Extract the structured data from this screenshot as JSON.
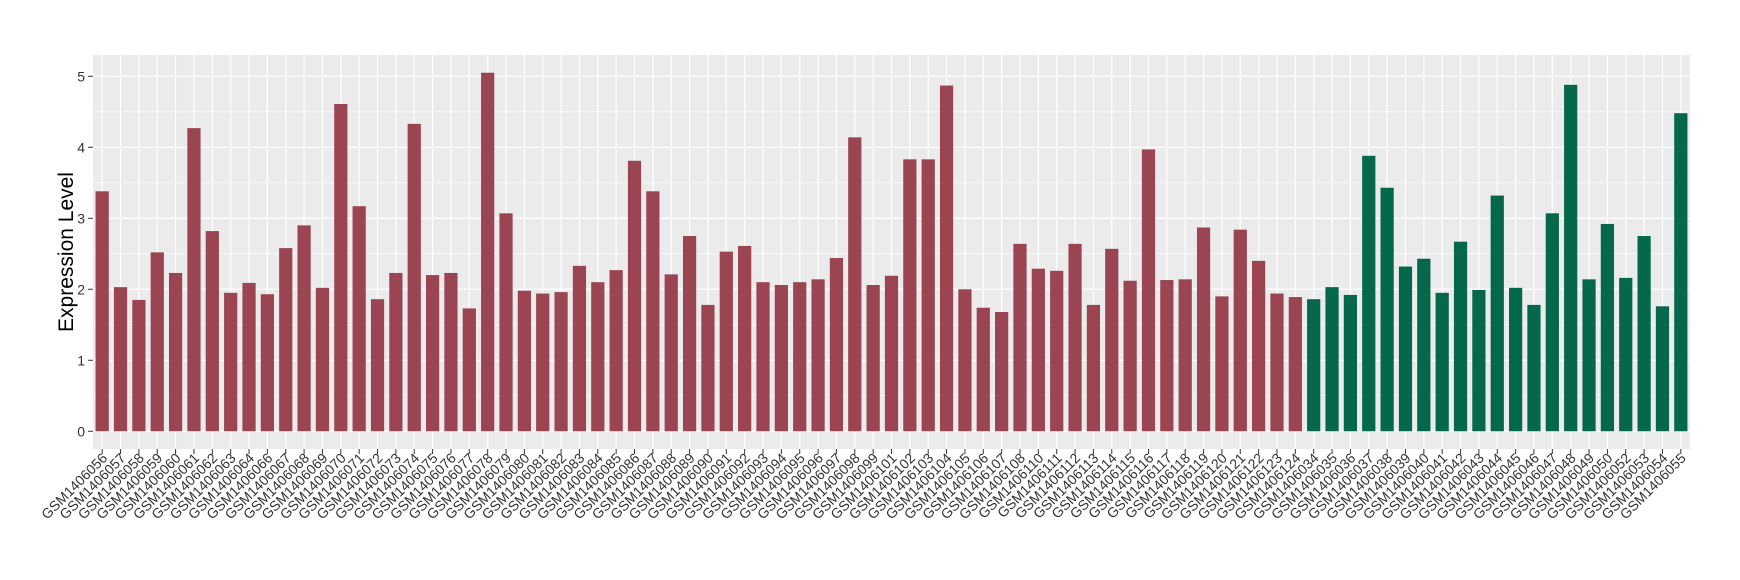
{
  "chart_data": {
    "type": "bar",
    "title": "",
    "xlabel": "",
    "ylabel": "Expression Level",
    "ylim": [
      -0.25,
      5.3
    ],
    "yticks": [
      0,
      1,
      2,
      3,
      4,
      5
    ],
    "grid": true,
    "legend": "none",
    "colors": {
      "group_a": "#9B4452",
      "group_b": "#05684A",
      "panel_bg": "#EBEBEB",
      "grid": "#FFFFFF"
    },
    "series": [
      {
        "group": "group_a",
        "categories": [
          "GSM1406056",
          "GSM1406057",
          "GSM1406058",
          "GSM1406059",
          "GSM1406060",
          "GSM1406061",
          "GSM1406062",
          "GSM1406063",
          "GSM1406064",
          "GSM1406066",
          "GSM1406067",
          "GSM1406068",
          "GSM1406069",
          "GSM1406070",
          "GSM1406071",
          "GSM1406072",
          "GSM1406073",
          "GSM1406074",
          "GSM1406075",
          "GSM1406076",
          "GSM1406077",
          "GSM1406078",
          "GSM1406079",
          "GSM1406080",
          "GSM1406081",
          "GSM1406082",
          "GSM1406083",
          "GSM1406084",
          "GSM1406085",
          "GSM1406086",
          "GSM1406087",
          "GSM1406088",
          "GSM1406089",
          "GSM1406090",
          "GSM1406091",
          "GSM1406092",
          "GSM1406093",
          "GSM1406094",
          "GSM1406095",
          "GSM1406096",
          "GSM1406097",
          "GSM1406098",
          "GSM1406099",
          "GSM1406101",
          "GSM1406102",
          "GSM1406103",
          "GSM1406104",
          "GSM1406105",
          "GSM1406106",
          "GSM1406107",
          "GSM1406108",
          "GSM1406110",
          "GSM1406111",
          "GSM1406112",
          "GSM1406113",
          "GSM1406114",
          "GSM1406115",
          "GSM1406116",
          "GSM1406117",
          "GSM1406118",
          "GSM1406119",
          "GSM1406120",
          "GSM1406121",
          "GSM1406122",
          "GSM1406123",
          "GSM1406124"
        ],
        "values": [
          3.38,
          2.03,
          1.85,
          2.52,
          2.23,
          4.27,
          2.82,
          1.95,
          2.09,
          1.93,
          2.58,
          2.9,
          2.02,
          4.61,
          3.17,
          1.86,
          2.23,
          4.33,
          2.2,
          2.23,
          1.73,
          5.05,
          3.07,
          1.98,
          1.94,
          1.96,
          2.33,
          2.1,
          2.27,
          3.81,
          3.38,
          2.21,
          2.75,
          1.78,
          2.53,
          2.61,
          2.1,
          2.06,
          2.1,
          2.14,
          2.44,
          4.14,
          2.06,
          2.19,
          3.83,
          3.83,
          4.87,
          2.0,
          1.74,
          1.68,
          2.64,
          2.29,
          2.26,
          2.64,
          1.78,
          2.57,
          2.12,
          3.97,
          2.13,
          2.14,
          2.87,
          1.9,
          2.84,
          2.4,
          1.94,
          1.89
        ]
      },
      {
        "group": "group_b",
        "categories": [
          "GSM1406034",
          "GSM1406035",
          "GSM1406036",
          "GSM1406037",
          "GSM1406038",
          "GSM1406039",
          "GSM1406040",
          "GSM1406041",
          "GSM1406042",
          "GSM1406043",
          "GSM1406044",
          "GSM1406045",
          "GSM1406046",
          "GSM1406047",
          "GSM1406048",
          "GSM1406049",
          "GSM1406050",
          "GSM1406052",
          "GSM1406053",
          "GSM1406054",
          "GSM1406055"
        ],
        "values": [
          1.86,
          2.03,
          1.92,
          3.88,
          3.43,
          2.32,
          2.43,
          1.95,
          2.67,
          1.99,
          3.32,
          2.02,
          1.78,
          3.07,
          4.88,
          2.14,
          2.92,
          2.16,
          2.75,
          1.76,
          4.48
        ]
      }
    ]
  }
}
